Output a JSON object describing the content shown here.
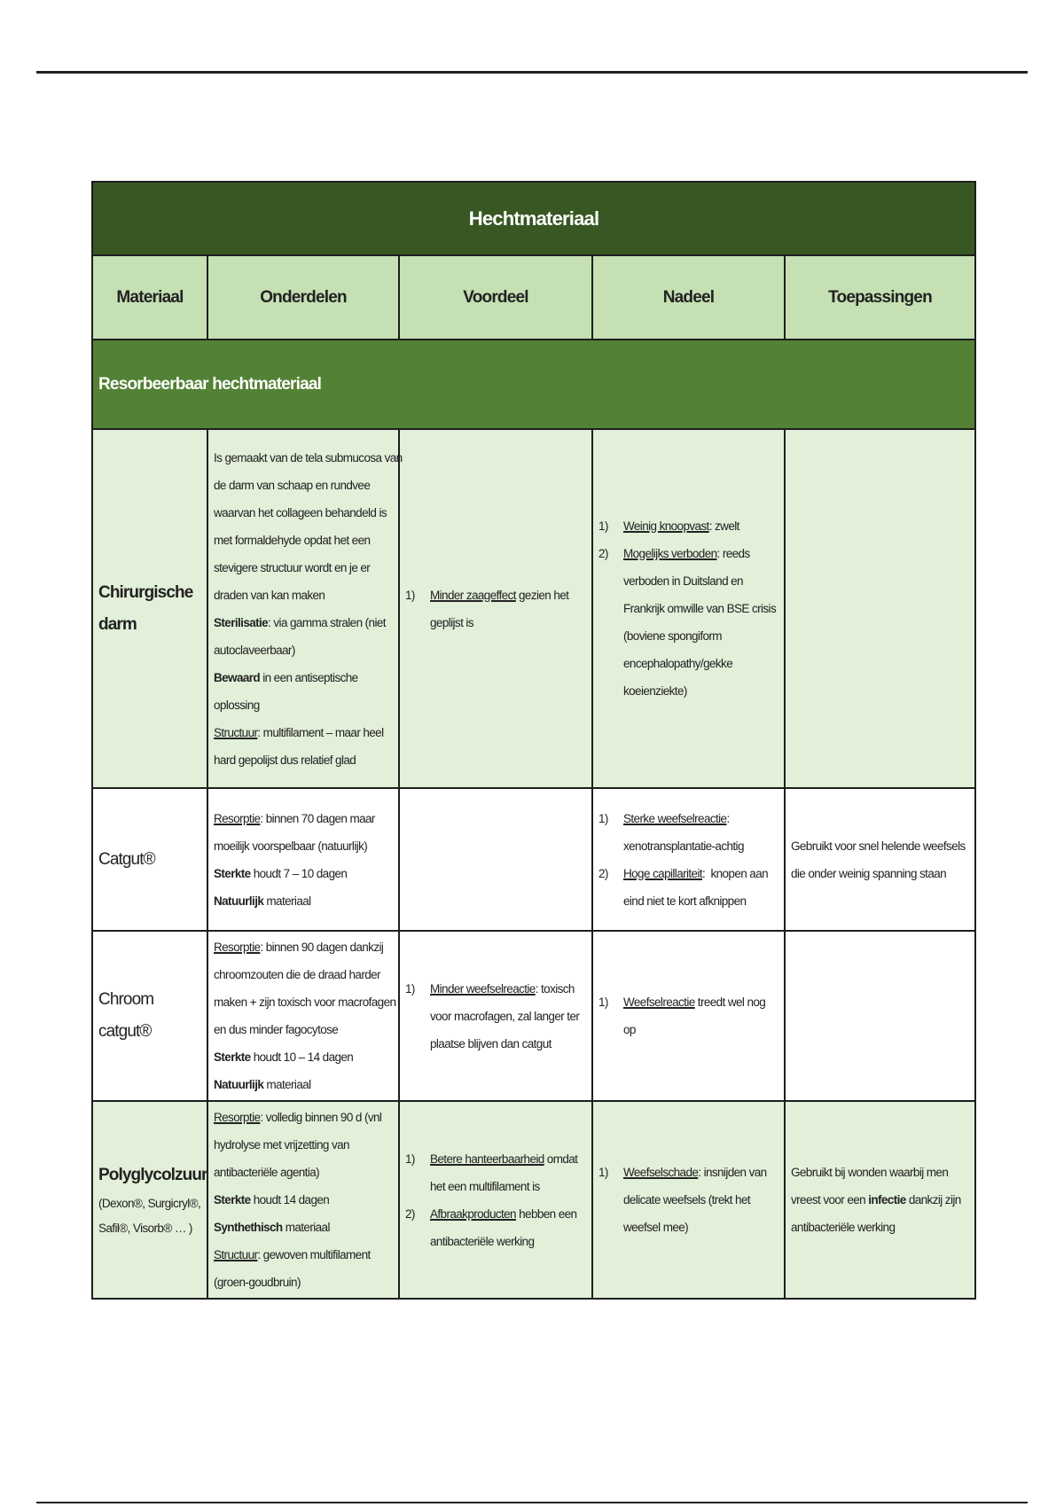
{
  "title": "Hechtmateriaal",
  "headers": [
    "Materiaal",
    "Onderdelen",
    "Voordeel",
    "Nadeel",
    "Toepassingen"
  ],
  "section": "Resorbeerbaar hechtmateriaal",
  "colors": {
    "title_bg": "#385723",
    "header_bg": "#c5e0b3",
    "section_bg": "#538135",
    "row_green": "#e2efd9"
  },
  "rows": [
    {
      "style": "green",
      "height": 405,
      "materiaal": {
        "name": "Chirurgische darm",
        "bold": true,
        "sub": ""
      },
      "cells": [
        [
          {
            "num": "",
            "lines": [
              [
                {
                  "t": "Is gemaakt van de tela submucosa van",
                  "s": ""
                }
              ],
              [
                {
                  "t": "de darm van schaap en rundvee",
                  "s": ""
                }
              ],
              [
                {
                  "t": "waarvan het collageen behandeld is",
                  "s": ""
                }
              ],
              [
                {
                  "t": "met formaldehyde opdat het een",
                  "s": ""
                }
              ],
              [
                {
                  "t": "stevigere structuur wordt en je er",
                  "s": ""
                }
              ],
              [
                {
                  "t": "draden van kan maken",
                  "s": ""
                }
              ],
              [
                {
                  "t": "Sterilisatie",
                  "s": "b"
                },
                {
                  "t": ": via gamma stralen (niet",
                  "s": ""
                }
              ],
              [
                {
                  "t": "autoclaveerbaar)",
                  "s": ""
                }
              ],
              [
                {
                  "t": "Bewaard",
                  "s": "b"
                },
                {
                  "t": " in een antiseptische",
                  "s": ""
                }
              ],
              [
                {
                  "t": "oplossing",
                  "s": ""
                }
              ],
              [
                {
                  "t": "Structuur",
                  "s": "u"
                },
                {
                  "t": ": multifilament – maar heel",
                  "s": ""
                }
              ],
              [
                {
                  "t": "hard gepolijst dus relatief glad",
                  "s": ""
                }
              ]
            ]
          }
        ],
        [
          {
            "num": "1)",
            "lines": [
              [
                {
                  "t": "Minder zaageffect",
                  "s": "u"
                },
                {
                  "t": " gezien het",
                  "s": ""
                }
              ],
              [
                {
                  "t": "geplijst is",
                  "s": ""
                }
              ]
            ]
          }
        ],
        [
          {
            "num": "1)",
            "lines": [
              [
                {
                  "t": "Weinig knoopvast",
                  "s": "u"
                },
                {
                  "t": ": zwelt",
                  "s": ""
                }
              ]
            ]
          },
          {
            "num": "2)",
            "lines": [
              [
                {
                  "t": "Mogelijks verboden",
                  "s": "u"
                },
                {
                  "t": ": reeds",
                  "s": ""
                }
              ],
              [
                {
                  "t": "verboden in Duitsland en",
                  "s": ""
                }
              ],
              [
                {
                  "t": "Frankrijk omwille van BSE crisis",
                  "s": ""
                }
              ],
              [
                {
                  "t": "(boviene spongiform",
                  "s": ""
                }
              ],
              [
                {
                  "t": "encephalopathy/gekke",
                  "s": ""
                }
              ],
              [
                {
                  "t": "koeienziekte)",
                  "s": ""
                }
              ]
            ]
          }
        ],
        []
      ]
    },
    {
      "style": "white",
      "height": 161,
      "materiaal": {
        "name": "Catgut®",
        "bold": false,
        "sub": ""
      },
      "cells": [
        [
          {
            "num": "",
            "lines": [
              [
                {
                  "t": "Resorptie",
                  "s": "u"
                },
                {
                  "t": ": binnen 70 dagen maar",
                  "s": ""
                }
              ],
              [
                {
                  "t": "moeilijk voorspelbaar (natuurlijk)",
                  "s": ""
                }
              ],
              [
                {
                  "t": "Sterkte",
                  "s": "b"
                },
                {
                  "t": " houdt 7 – 10 dagen",
                  "s": ""
                }
              ],
              [
                {
                  "t": "Natuurlijk",
                  "s": "b"
                },
                {
                  "t": " materiaal",
                  "s": ""
                }
              ]
            ]
          }
        ],
        [],
        [
          {
            "num": "1)",
            "lines": [
              [
                {
                  "t": "Sterke weefselreactie",
                  "s": "u"
                },
                {
                  "t": ":",
                  "s": ""
                }
              ],
              [
                {
                  "t": "xenotransplantatie-achtig",
                  "s": ""
                }
              ]
            ]
          },
          {
            "num": "2)",
            "lines": [
              [
                {
                  "t": "Hoge capillariteit",
                  "s": "u"
                },
                {
                  "t": ":  knopen aan",
                  "s": ""
                }
              ],
              [
                {
                  "t": "eind niet te kort afknippen",
                  "s": ""
                }
              ]
            ]
          }
        ],
        [
          {
            "num": "",
            "lines": [
              [
                {
                  "t": "Gebruikt voor snel helende weefsels",
                  "s": ""
                }
              ],
              [
                {
                  "t": "die onder weinig spanning staan",
                  "s": ""
                }
              ]
            ]
          }
        ]
      ]
    },
    {
      "style": "white",
      "height": 192,
      "materiaal": {
        "name": "Chroom catgut®",
        "bold": false,
        "sub": ""
      },
      "cells": [
        [
          {
            "num": "",
            "lines": [
              [
                {
                  "t": "Resorptie",
                  "s": "u"
                },
                {
                  "t": ": binnen 90 dagen dankzij",
                  "s": ""
                }
              ],
              [
                {
                  "t": "chroomzouten die de draad harder",
                  "s": ""
                }
              ],
              [
                {
                  "t": "maken + zijn toxisch voor macrofagen",
                  "s": ""
                }
              ],
              [
                {
                  "t": "en dus minder fagocytose",
                  "s": ""
                }
              ],
              [
                {
                  "t": "Sterkte",
                  "s": "b"
                },
                {
                  "t": " houdt 10 – 14 dagen",
                  "s": ""
                }
              ],
              [
                {
                  "t": "Natuurlijk",
                  "s": "b"
                },
                {
                  "t": " materiaal",
                  "s": ""
                }
              ]
            ]
          }
        ],
        [
          {
            "num": "1)",
            "lines": [
              [
                {
                  "t": "Minder weefselreactie",
                  "s": "u"
                },
                {
                  "t": ": toxisch",
                  "s": ""
                }
              ],
              [
                {
                  "t": "voor macrofagen, zal langer ter",
                  "s": ""
                }
              ],
              [
                {
                  "t": "plaatse blijven dan catgut",
                  "s": ""
                }
              ]
            ]
          }
        ],
        [
          {
            "num": "1)",
            "lines": [
              [
                {
                  "t": "Weefselreactie",
                  "s": "u"
                },
                {
                  "t": " treedt wel nog",
                  "s": ""
                }
              ],
              [
                {
                  "t": "op",
                  "s": ""
                }
              ]
            ]
          }
        ],
        []
      ]
    },
    {
      "style": "green",
      "height": 219,
      "materiaal": {
        "name": "Polyglycolzuur",
        "bold": true,
        "sub": "(Dexon®, Surgicryl®, Safil®, Visorb® … )"
      },
      "cells": [
        [
          {
            "num": "",
            "lines": [
              [
                {
                  "t": "Resorptie",
                  "s": "u"
                },
                {
                  "t": ": volledig binnen 90 d (vnl",
                  "s": ""
                }
              ],
              [
                {
                  "t": "hydrolyse met vrijzetting van",
                  "s": ""
                }
              ],
              [
                {
                  "t": "antibacteriële agentia)",
                  "s": ""
                }
              ],
              [
                {
                  "t": "Sterkte",
                  "s": "b"
                },
                {
                  "t": " houdt 14 dagen",
                  "s": ""
                }
              ],
              [
                {
                  "t": "Synthethisch",
                  "s": "b"
                },
                {
                  "t": " materiaal",
                  "s": ""
                }
              ],
              [
                {
                  "t": "Structuur",
                  "s": "u"
                },
                {
                  "t": ": gewoven multifilament",
                  "s": ""
                }
              ],
              [
                {
                  "t": "(groen-goudbruin)",
                  "s": ""
                }
              ]
            ]
          }
        ],
        [
          {
            "num": "1)",
            "lines": [
              [
                {
                  "t": "Betere hanteerbaarheid",
                  "s": "u"
                },
                {
                  "t": " omdat",
                  "s": ""
                }
              ],
              [
                {
                  "t": "het een multifilament is",
                  "s": ""
                }
              ]
            ]
          },
          {
            "num": "2)",
            "lines": [
              [
                {
                  "t": "Afbraakproducten",
                  "s": "u"
                },
                {
                  "t": " hebben een",
                  "s": ""
                }
              ],
              [
                {
                  "t": "antibacteriële werking",
                  "s": ""
                }
              ]
            ]
          }
        ],
        [
          {
            "num": "1)",
            "lines": [
              [
                {
                  "t": "Weefselschade",
                  "s": "u"
                },
                {
                  "t": ": insnijden van",
                  "s": ""
                }
              ],
              [
                {
                  "t": "delicate weefsels (trekt het",
                  "s": ""
                }
              ],
              [
                {
                  "t": "weefsel mee)",
                  "s": ""
                }
              ]
            ]
          }
        ],
        [
          {
            "num": "",
            "lines": [
              [
                {
                  "t": "Gebruikt bij wonden waarbij men",
                  "s": ""
                }
              ],
              [
                {
                  "t": "vreest voor een ",
                  "s": ""
                },
                {
                  "t": "infectie",
                  "s": "b"
                },
                {
                  "t": " dankzij zijn",
                  "s": ""
                }
              ],
              [
                {
                  "t": "antibacteriële werking",
                  "s": ""
                }
              ]
            ]
          }
        ]
      ]
    }
  ]
}
